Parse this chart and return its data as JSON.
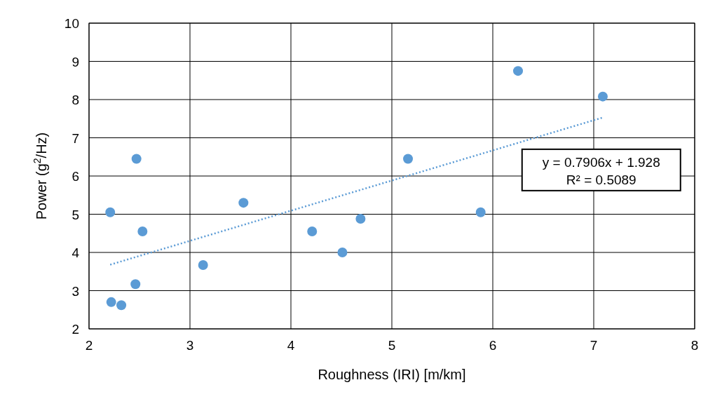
{
  "chart_data": {
    "type": "scatter",
    "xlabel": "Roughness (IRI) [m/km]",
    "ylabel": "Power (g$^{2}$/Hz)",
    "xlim": [
      2,
      8
    ],
    "ylim": [
      2,
      10
    ],
    "xticks": [
      2,
      3,
      4,
      5,
      6,
      7,
      8
    ],
    "yticks": [
      2,
      3,
      4,
      5,
      6,
      7,
      8,
      9,
      10
    ],
    "grid": true,
    "annotations": [
      "y = 0.7906x + 1.928",
      "R² = 0.5089"
    ],
    "series": [
      {
        "color": "#5b9bd5",
        "marker": "circle",
        "x": [
          2.21,
          2.22,
          2.32,
          2.46,
          2.47,
          2.53,
          3.13,
          3.53,
          4.21,
          4.51,
          4.69,
          5.16,
          5.88,
          6.25,
          7.09
        ],
        "values": [
          5.05,
          2.7,
          2.62,
          3.17,
          6.45,
          4.55,
          3.67,
          5.3,
          4.55,
          4.0,
          4.88,
          6.45,
          5.05,
          8.75,
          8.08
        ]
      },
      {
        "type": "line",
        "color": "#5b9bd5",
        "line_style": "dotted",
        "marker": "none",
        "x": [
          2.21,
          7.09
        ],
        "values": [
          3.68,
          7.53
        ]
      }
    ]
  }
}
